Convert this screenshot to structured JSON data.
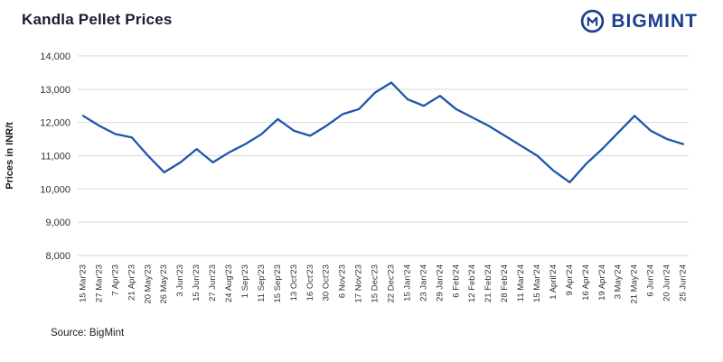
{
  "header": {
    "title": "Kandla Pellet Prices",
    "brand": "BIGMINT",
    "brand_color": "#1d3d92"
  },
  "footer": {
    "source": "Source: BigMint"
  },
  "chart_data": {
    "type": "line",
    "title": "Kandla Pellet Prices",
    "xlabel": "",
    "ylabel": "Prices in INR/t",
    "ylim": [
      8000,
      14000
    ],
    "ytick_step": 1000,
    "grid": true,
    "legend_position": "none",
    "line_color": "#1d57a8",
    "grid_color": "#d9d9d9",
    "tick_color": "#333333",
    "categories": [
      "15 Mar'23",
      "27 Mar'23",
      "7 Apr'23",
      "21 Apr'23",
      "20 May'23",
      "26 May'23",
      "3 Jun'23",
      "15 Jun'23",
      "27 Jun'23",
      "24 Aug'23",
      "1 Sep'23",
      "11 Sep'23",
      "15 Sep'23",
      "13 Oct'23",
      "16 Oct'23",
      "30 Oct'23",
      "6 Nov'23",
      "17 Nov'23",
      "15 Dec'23",
      "22 Dec'23",
      "15 Jan'24",
      "23 Jan'24",
      "29 Jan'24",
      "6 Feb'24",
      "12 Feb'24",
      "21 Feb'24",
      "28 Feb'24",
      "11 Mar'24",
      "15 Mar'24",
      "1 April'24",
      "9 Apr'24",
      "16 Apr'24",
      "19 Apr'24",
      "3 May'24",
      "21 May'24",
      "6 Jun'24",
      "20 Jun'24",
      "25 Jun'24"
    ],
    "values": [
      12200,
      11900,
      11650,
      11550,
      11000,
      10500,
      10800,
      11200,
      10800,
      11100,
      11350,
      11650,
      12100,
      11750,
      11600,
      11900,
      12250,
      12400,
      12900,
      13200,
      12700,
      12500,
      12800,
      12400,
      12150,
      11900,
      11600,
      11300,
      11000,
      10550,
      10200,
      10750,
      11200,
      11700,
      12200,
      11750,
      11500,
      11350
    ]
  }
}
